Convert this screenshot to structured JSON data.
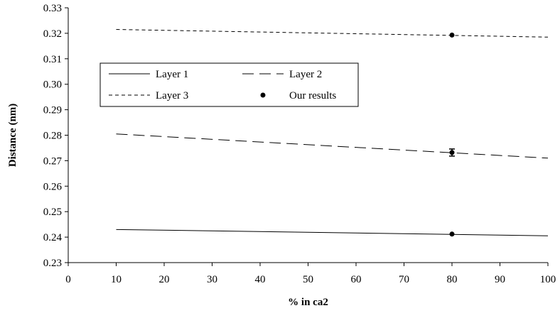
{
  "chart_data": {
    "type": "line",
    "title": "",
    "xlabel": "% in ca2",
    "ylabel": "Distance (nm)",
    "xlim": [
      0,
      100
    ],
    "ylim": [
      0.23,
      0.33
    ],
    "x_ticks": [
      0,
      10,
      20,
      30,
      40,
      50,
      60,
      70,
      80,
      90,
      100
    ],
    "y_ticks": [
      0.23,
      0.24,
      0.25,
      0.26,
      0.27,
      0.28,
      0.29,
      0.3,
      0.31,
      0.32,
      0.33
    ],
    "x_tick_labels": [
      "0",
      "10",
      "20",
      "30",
      "40",
      "50",
      "60",
      "70",
      "80",
      "90",
      "100"
    ],
    "y_tick_labels": [
      "0.23",
      "0.24",
      "0.25",
      "0.26",
      "0.27",
      "0.28",
      "0.29",
      "0.30",
      "0.31",
      "0.32",
      "0.33"
    ],
    "grid": false,
    "legend_position": "upper-left",
    "series": [
      {
        "name": "Layer 1",
        "style": "solid",
        "x": [
          10,
          100
        ],
        "values": [
          0.243,
          0.2405
        ]
      },
      {
        "name": "Layer 2",
        "style": "long-dash",
        "x": [
          10,
          100
        ],
        "values": [
          0.2805,
          0.271
        ]
      },
      {
        "name": "Layer 3",
        "style": "short-dash",
        "x": [
          10,
          100
        ],
        "values": [
          0.3215,
          0.3185
        ]
      }
    ],
    "points": {
      "name": "Our results",
      "x": [
        80,
        80,
        80
      ],
      "y": [
        0.2412,
        0.2732,
        0.3193
      ],
      "error_bar_on": [
        false,
        true,
        false
      ]
    },
    "colors": {
      "line": "#000000",
      "background": "#ffffff"
    }
  }
}
